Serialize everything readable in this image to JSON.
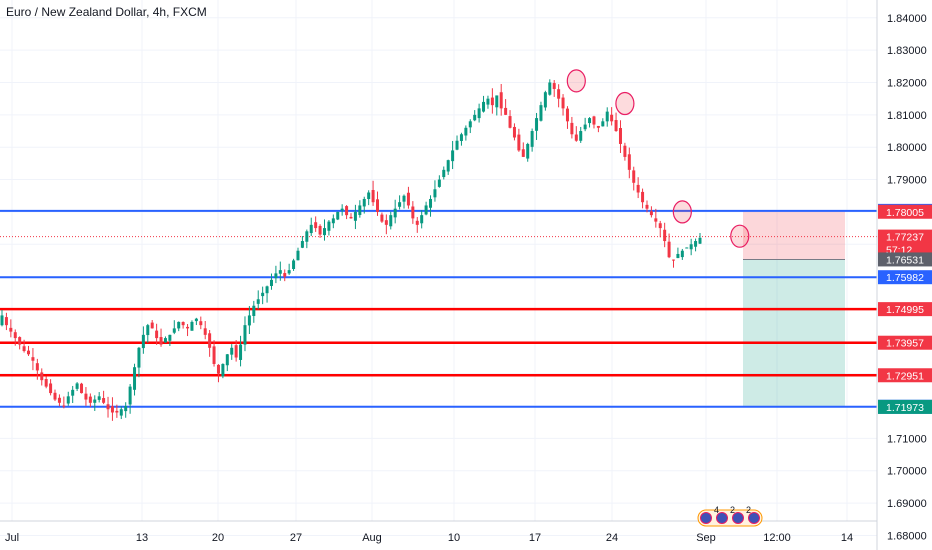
{
  "chart_data": {
    "type": "candlestick",
    "title": "Euro / New Zealand Dollar, 4h, FXCM",
    "ylim": [
      1.6755,
      1.8455
    ],
    "y_ticks": [
      "1.84000",
      "1.83000",
      "1.82000",
      "1.81000",
      "1.80000",
      "1.79000",
      "1.78000",
      "1.77000",
      "1.76000",
      "1.75000",
      "1.74000",
      "1.73000",
      "1.72000",
      "1.71000",
      "1.70000",
      "1.69000",
      "1.68000"
    ],
    "x_ticks": [
      "Jul",
      "13",
      "20",
      "27",
      "Aug",
      "10",
      "17",
      "24",
      "Sep",
      "12:00",
      "14"
    ],
    "support_resistance_blue": [
      1.78032,
      1.75982,
      1.71978
    ],
    "support_resistance_red": [
      1.74995,
      1.73957,
      1.72951
    ],
    "current_price": 1.77237,
    "countdown": "57:12",
    "price_tags": [
      {
        "label": "1.78032",
        "value": 1.78032,
        "color": "#2962ff"
      },
      {
        "label": "1.78005",
        "value": 1.78005,
        "color": "#f23645"
      },
      {
        "label": "1.77237",
        "value": 1.77237,
        "color": "#f23645"
      },
      {
        "label": "57:12",
        "value": 1.7684,
        "color": "#f23645"
      },
      {
        "label": "1.76531",
        "value": 1.76531,
        "color": "#5d606b"
      },
      {
        "label": "1.75982",
        "value": 1.75982,
        "color": "#2962ff"
      },
      {
        "label": "1.74995",
        "value": 1.74995,
        "color": "#f23645"
      },
      {
        "label": "1.73957",
        "value": 1.73957,
        "color": "#f23645"
      },
      {
        "label": "1.72951",
        "value": 1.72951,
        "color": "#f23645"
      },
      {
        "label": "1.71978",
        "value": 1.71978,
        "color": "#2962ff"
      },
      {
        "label": "1.71973",
        "value": 1.71973,
        "color": "#089981"
      }
    ],
    "short_position": {
      "entry": 1.76531,
      "stop": 1.78032,
      "target": 1.71978
    },
    "candles_close_path": [
      1.748,
      1.745,
      1.743,
      1.741,
      1.739,
      1.737,
      1.736,
      1.734,
      1.731,
      1.728,
      1.726,
      1.724,
      1.722,
      1.721,
      1.72,
      1.723,
      1.725,
      1.727,
      1.724,
      1.722,
      1.721,
      1.722,
      1.723,
      1.721,
      1.719,
      1.718,
      1.718,
      1.719,
      1.72,
      1.726,
      1.732,
      1.738,
      1.742,
      1.745,
      1.744,
      1.741,
      1.739,
      1.741,
      1.742,
      1.744,
      1.746,
      1.745,
      1.744,
      1.746,
      1.747,
      1.745,
      1.742,
      1.738,
      1.733,
      1.73,
      1.733,
      1.736,
      1.738,
      1.735,
      1.739,
      1.745,
      1.748,
      1.751,
      1.753,
      1.755,
      1.757,
      1.759,
      1.761,
      1.762,
      1.76,
      1.762,
      1.765,
      1.768,
      1.771,
      1.774,
      1.776,
      1.775,
      1.773,
      1.775,
      1.777,
      1.778,
      1.78,
      1.781,
      1.779,
      1.778,
      1.78,
      1.782,
      1.784,
      1.786,
      1.783,
      1.78,
      1.777,
      1.776,
      1.779,
      1.781,
      1.783,
      1.785,
      1.782,
      1.778,
      1.776,
      1.779,
      1.782,
      1.784,
      1.787,
      1.79,
      1.793,
      1.796,
      1.799,
      1.802,
      1.804,
      1.806,
      1.808,
      1.81,
      1.812,
      1.814,
      1.815,
      1.813,
      1.816,
      1.812,
      1.81,
      1.806,
      1.803,
      1.799,
      1.797,
      1.801,
      1.805,
      1.809,
      1.813,
      1.817,
      1.82,
      1.818,
      1.815,
      1.812,
      1.808,
      1.804,
      1.802,
      1.805,
      1.807,
      1.809,
      1.807,
      1.806,
      1.808,
      1.811,
      1.808,
      1.805,
      1.801,
      1.797,
      1.793,
      1.789,
      1.786,
      1.783,
      1.781,
      1.779,
      1.777,
      1.775,
      1.771,
      1.766,
      1.765,
      1.767,
      1.768,
      1.769,
      1.77,
      1.771,
      1.772
    ],
    "highlight_circles": [
      {
        "x_index": 130,
        "price": 1.8205
      },
      {
        "x_index": 141,
        "price": 1.8135
      },
      {
        "x_index": 154,
        "price": 1.78
      },
      {
        "x_index": 167,
        "price": 1.7725
      }
    ],
    "grid": true,
    "legend": "top-left"
  },
  "footer_badge": {
    "counts": [
      "4",
      "2",
      "2"
    ]
  }
}
